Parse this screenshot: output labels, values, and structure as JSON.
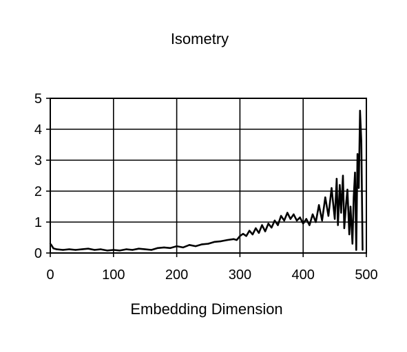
{
  "chart_data": {
    "type": "line",
    "title": "Isometry",
    "xlabel": "Embedding Dimension",
    "ylabel": "",
    "xlim": [
      0,
      500
    ],
    "ylim": [
      0,
      5
    ],
    "xticks": [
      "0",
      "100",
      "200",
      "300",
      "400",
      "500"
    ],
    "yticks": [
      "0",
      "1",
      "2",
      "3",
      "4",
      "5"
    ],
    "grid": true,
    "legend": "none",
    "series": [
      {
        "color": "#000000",
        "x": [
          0,
          2,
          5,
          10,
          20,
          30,
          40,
          50,
          60,
          70,
          80,
          90,
          100,
          110,
          120,
          130,
          140,
          150,
          160,
          170,
          180,
          190,
          200,
          210,
          220,
          230,
          240,
          250,
          260,
          270,
          280,
          290,
          295,
          300,
          305,
          310,
          315,
          320,
          325,
          330,
          335,
          340,
          345,
          350,
          355,
          360,
          365,
          370,
          375,
          380,
          385,
          390,
          395,
          400,
          405,
          410,
          415,
          420,
          425,
          430,
          435,
          440,
          445,
          450,
          453,
          455,
          458,
          460,
          463,
          465,
          468,
          470,
          473,
          475,
          478,
          480,
          482,
          484,
          486,
          488,
          490,
          492,
          494
        ],
        "y": [
          0.3,
          0.25,
          0.15,
          0.12,
          0.1,
          0.12,
          0.1,
          0.12,
          0.14,
          0.1,
          0.12,
          0.08,
          0.1,
          0.08,
          0.12,
          0.1,
          0.14,
          0.12,
          0.1,
          0.16,
          0.18,
          0.16,
          0.22,
          0.18,
          0.26,
          0.22,
          0.28,
          0.3,
          0.36,
          0.38,
          0.42,
          0.45,
          0.42,
          0.55,
          0.62,
          0.55,
          0.72,
          0.6,
          0.8,
          0.65,
          0.9,
          0.7,
          0.95,
          0.82,
          1.05,
          0.9,
          1.2,
          1.05,
          1.3,
          1.1,
          1.25,
          1.05,
          1.15,
          0.95,
          1.1,
          0.9,
          1.25,
          1.0,
          1.55,
          1.05,
          1.8,
          1.2,
          2.1,
          1.1,
          2.4,
          0.9,
          2.2,
          1.3,
          2.5,
          0.8,
          1.6,
          2.05,
          0.6,
          1.5,
          0.3,
          1.8,
          2.6,
          0.1,
          3.2,
          2.1,
          4.6,
          3.6,
          0.1
        ]
      }
    ]
  }
}
